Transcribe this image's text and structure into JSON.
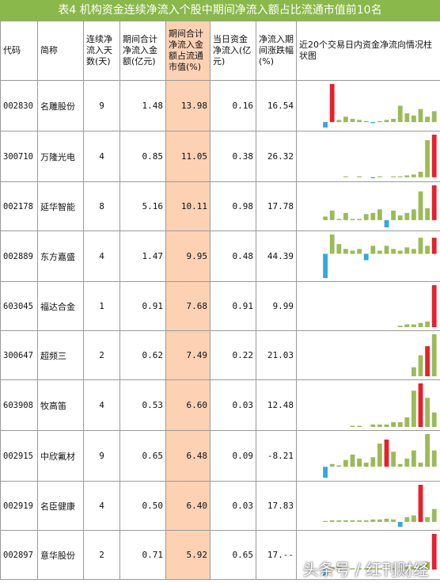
{
  "title": "表4  机构资金连续净流入个股中期间净流入额占比流通市值前10名",
  "headers": [
    "代码",
    "简称",
    "连续净流入天数(天)",
    "期间合计净流入金额(亿元)",
    "期间合计净流入金额占流通市值(%)",
    "当日资金净流入(亿元)",
    "净流入期间涨跌幅(%)",
    "近20个交易日内资金净流向情况柱状图"
  ],
  "rows": [
    {
      "code": "002830",
      "name": "名雕股份",
      "days": "9",
      "inflow": "1.48",
      "pct": "13.98",
      "today": "0.16",
      "change": "16.54"
    },
    {
      "code": "300710",
      "name": "万隆光电",
      "days": "4",
      "inflow": "0.85",
      "pct": "11.05",
      "today": "0.38",
      "change": "26.32"
    },
    {
      "code": "002178",
      "name": "延华智能",
      "days": "8",
      "inflow": "5.16",
      "pct": "10.11",
      "today": "0.98",
      "change": "17.78"
    },
    {
      "code": "002889",
      "name": "东方嘉盛",
      "days": "4",
      "inflow": "1.47",
      "pct": "9.95",
      "today": "0.48",
      "change": "44.39"
    },
    {
      "code": "603045",
      "name": "福达合金",
      "days": "1",
      "inflow": "0.91",
      "pct": "7.68",
      "today": "0.91",
      "change": "9.99"
    },
    {
      "code": "300647",
      "name": "超频三",
      "days": "2",
      "inflow": "0.62",
      "pct": "7.49",
      "today": "0.22",
      "change": "21.03"
    },
    {
      "code": "603908",
      "name": "牧高笛",
      "days": "4",
      "inflow": "0.53",
      "pct": "6.60",
      "today": "0.03",
      "change": "12.48"
    },
    {
      "code": "002915",
      "name": "中欣氟材",
      "days": "9",
      "inflow": "0.65",
      "pct": "6.48",
      "today": "0.09",
      "change": "-8.21"
    },
    {
      "code": "002919",
      "name": "名臣健康",
      "days": "4",
      "inflow": "0.50",
      "pct": "6.40",
      "today": "0.03",
      "change": "17.83"
    },
    {
      "code": "002897",
      "name": "意华股份",
      "days": "2",
      "inflow": "0.71",
      "pct": "5.92",
      "today": "0.65",
      "change": "17.--"
    }
  ],
  "chart_data": {
    "type": "bar",
    "colors": {
      "positive": "#9bbb59",
      "negative": "#33a8e0",
      "highlight": "#e8202a"
    },
    "series": [
      {
        "values": [
          0,
          0,
          0,
          -0.5,
          3.5,
          0.2,
          0.5,
          0.3,
          0.2,
          0.1,
          -0.1,
          0.1,
          0.2,
          0.3,
          1.5,
          0.8,
          0.6,
          1.2,
          0.5,
          1.0
        ],
        "highlight": [
          4
        ]
      },
      {
        "values": [
          0,
          0,
          0,
          0,
          0,
          0,
          0.1,
          0,
          0.1,
          0,
          -0.1,
          0.1,
          0,
          0.1,
          0.1,
          0.2,
          0.3,
          0.6,
          4.0,
          4.6
        ],
        "highlight": [
          19
        ]
      },
      {
        "values": [
          0,
          0,
          0,
          0.3,
          0.8,
          0.1,
          0.6,
          0.1,
          0.1,
          0.5,
          0.6,
          0.9,
          -0.6,
          0.8,
          0.4,
          0.6,
          0.9,
          2.4,
          1.0,
          2.9
        ],
        "highlight": [
          19
        ]
      },
      {
        "values": [
          0,
          0,
          0,
          -1.5,
          1.2,
          0.6,
          0.3,
          0.2,
          0.3,
          -0.4,
          0.5,
          0.2,
          0.5,
          0.3,
          0.2,
          0.4,
          0.3,
          1.0,
          0.5,
          1.0
        ],
        "highlight": [
          19
        ]
      },
      {
        "values": [
          0,
          0,
          0,
          0,
          0,
          0,
          0,
          0,
          0,
          0,
          0,
          0,
          0,
          0,
          0.1,
          0.2,
          0.2,
          0.3,
          0.4,
          3.0
        ],
        "highlight": [
          19
        ]
      },
      {
        "values": [
          0,
          0,
          0,
          0,
          0,
          0,
          0,
          0,
          0,
          0,
          0,
          0,
          0,
          0,
          0,
          0,
          0.3,
          0.7,
          1.0,
          1.4
        ],
        "highlight": [
          18
        ]
      },
      {
        "values": [
          0,
          0,
          0,
          0,
          0,
          0,
          0,
          0.05,
          0.05,
          0,
          0.1,
          0.1,
          0.1,
          0.2,
          0.2,
          0.4,
          1.5,
          1.8,
          1.2,
          0.6
        ],
        "highlight": [
          17
        ]
      },
      {
        "values": [
          0,
          0,
          0,
          -0.8,
          0.2,
          0.1,
          0.5,
          0.9,
          0.6,
          0.3,
          0.7,
          1.7,
          2.0,
          1.1,
          0.2,
          0.6,
          1.2,
          0.3,
          2.4,
          1.2
        ],
        "highlight": [
          12
        ]
      },
      {
        "values": [
          0,
          0,
          0,
          0.05,
          0.1,
          0.1,
          0.1,
          0.1,
          0.1,
          0.1,
          0.15,
          0.15,
          0.2,
          0.15,
          -0.3,
          0.3,
          0.4,
          2.3,
          0.3,
          0.8
        ],
        "highlight": [
          17
        ]
      },
      {
        "values": [
          0,
          0,
          0,
          -0.5,
          0.2,
          0.3,
          0.1,
          0.1,
          0.1,
          0.1,
          0.1,
          0.1,
          0.1,
          0.1,
          0.1,
          0.2,
          0.2,
          0.3,
          0.6,
          2.8
        ],
        "highlight": [
          19
        ]
      }
    ]
  }
}
